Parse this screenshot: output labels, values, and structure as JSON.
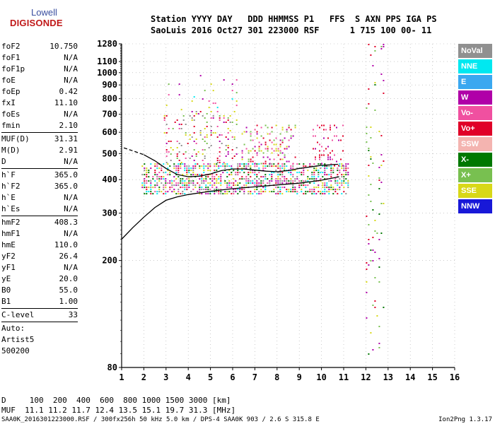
{
  "logo": {
    "line1": "Lowell",
    "line2": "DIGISONDE"
  },
  "header": {
    "row1": "Station YYYY DAY   DDD HHMMSS P1   FFS  S AXN PPS IGA PS",
    "row2": "SaoLuis 2016 Oct27 301 223000 RSF      1 715 100 00- 11"
  },
  "params": [
    {
      "label": "foF2",
      "value": "10.750"
    },
    {
      "label": "foF1",
      "value": "N/A"
    },
    {
      "label": "foF1p",
      "value": "N/A"
    },
    {
      "label": "foE",
      "value": "N/A"
    },
    {
      "label": "foEp",
      "value": "0.42"
    },
    {
      "label": "fxI",
      "value": "11.10"
    },
    {
      "label": "foEs",
      "value": "N/A"
    },
    {
      "label": "fmin",
      "value": "2.10"
    },
    {
      "sep": true
    },
    {
      "label": "MUF(D)",
      "value": "31.31"
    },
    {
      "label": "M(D)",
      "value": "2.91"
    },
    {
      "label": "D",
      "value": "N/A"
    },
    {
      "sep": true
    },
    {
      "label": "h`F",
      "value": "365.0"
    },
    {
      "label": "h`F2",
      "value": "365.0"
    },
    {
      "label": "h`E",
      "value": "N/A"
    },
    {
      "label": "h`Es",
      "value": "N/A"
    },
    {
      "sep": true
    },
    {
      "label": "hmF2",
      "value": "408.3"
    },
    {
      "label": "hmF1",
      "value": "N/A"
    },
    {
      "label": "hmE",
      "value": "110.0"
    },
    {
      "label": "yF2",
      "value": "26.4"
    },
    {
      "label": "yF1",
      "value": "N/A"
    },
    {
      "label": "yE",
      "value": "20.0"
    },
    {
      "label": "B0",
      "value": "55.0"
    },
    {
      "label": "B1",
      "value": "1.00"
    },
    {
      "sep": true
    },
    {
      "label": "C-level",
      "value": "33"
    },
    {
      "sep": true
    },
    {
      "text": "Auto:"
    },
    {
      "text": "Artist5"
    },
    {
      "text": "500200"
    }
  ],
  "legend": [
    {
      "label": "NoVal",
      "color": "#909090"
    },
    {
      "label": "NNE",
      "color": "#00e8f0"
    },
    {
      "label": "E",
      "color": "#3aa8f0"
    },
    {
      "label": "W",
      "color": "#b000a8"
    },
    {
      "label": "Vo-",
      "color": "#f050a0"
    },
    {
      "label": "Vo+",
      "color": "#e00028"
    },
    {
      "label": "SSW",
      "color": "#f4b4b0"
    },
    {
      "label": "X-",
      "color": "#007800"
    },
    {
      "label": "X+",
      "color": "#78c050"
    },
    {
      "label": "SSE",
      "color": "#d8d818"
    },
    {
      "label": "NNW",
      "color": "#1818d8"
    }
  ],
  "footer": {
    "d_row": "D     100  200  400  600  800 1000 1500 3000 [km]",
    "muf_row": "MUF  11.1 11.2 11.7 12.4 13.5 15.1 19.7 31.3 [MHz]",
    "info": "SAA0K_2016301223000.RSF / 300fx256h 50 kHz 5.0 km / DPS-4 SAA0K 903 / 2.6 S 315.8 E",
    "version": "Ion2Png 1.3.17"
  },
  "chart_data": {
    "type": "scatter",
    "xlim": [
      1,
      16
    ],
    "x_ticks": [
      1,
      2,
      3,
      4,
      5,
      6,
      7,
      8,
      9,
      10,
      11,
      12,
      13,
      14,
      15,
      16
    ],
    "ylim": [
      80,
      1280
    ],
    "y_ticks": [
      80,
      200,
      300,
      400,
      500,
      600,
      700,
      800,
      900,
      1000,
      1100,
      1280
    ],
    "y_scale": "log",
    "grid": true,
    "series": [
      {
        "name": "NoVal",
        "color": "#909090"
      },
      {
        "name": "NNE",
        "color": "#00e8f0"
      },
      {
        "name": "E",
        "color": "#3aa8f0"
      },
      {
        "name": "W",
        "color": "#b000a8"
      },
      {
        "name": "Vo-",
        "color": "#f050a0"
      },
      {
        "name": "Vo+",
        "color": "#e00028"
      },
      {
        "name": "SSW",
        "color": "#f4b4b0"
      },
      {
        "name": "X-",
        "color": "#007800"
      },
      {
        "name": "X+",
        "color": "#78c050"
      },
      {
        "name": "SSE",
        "color": "#d8d818"
      },
      {
        "name": "NNW",
        "color": "#1818d8"
      }
    ],
    "echo_clusters": [
      {
        "f": [
          1.9,
          11.2
        ],
        "h": [
          355,
          460
        ],
        "density": 0.55,
        "mix": [
          "Vo-",
          "W",
          "Vo+",
          "X-",
          "SSE",
          "NNE",
          "NoVal"
        ]
      },
      {
        "f": [
          2.9,
          6.2
        ],
        "h": [
          460,
          720
        ],
        "density": 0.18,
        "mix": [
          "Vo-",
          "W",
          "SSE",
          "X+",
          "NoVal",
          "Vo+"
        ]
      },
      {
        "f": [
          2.9,
          6.2
        ],
        "h": [
          720,
          980
        ],
        "density": 0.05,
        "mix": [
          "Vo-",
          "W",
          "SSE",
          "X+",
          "NNE"
        ]
      },
      {
        "f": [
          6.4,
          8.8
        ],
        "h": [
          460,
          640
        ],
        "density": 0.22,
        "mix": [
          "Vo-",
          "W",
          "SSE",
          "X+",
          "Vo+"
        ]
      },
      {
        "f": [
          9.6,
          11.0
        ],
        "h": [
          440,
          640
        ],
        "density": 0.15,
        "mix": [
          "Vo-",
          "W",
          "Vo+"
        ]
      },
      {
        "f": [
          12.0,
          12.8
        ],
        "h": [
          90,
          1280
        ],
        "density": 0.05,
        "mix": [
          "X-",
          "X+",
          "Vo+",
          "SSE",
          "W"
        ]
      }
    ],
    "trace_lower": {
      "f": [
        1.0,
        1.5,
        2.0,
        2.5,
        3.0,
        3.5,
        4.0,
        5.0,
        6.0,
        7.0,
        8.0,
        9.0,
        10.0,
        10.8
      ],
      "h": [
        240,
        265,
        290,
        315,
        335,
        345,
        352,
        362,
        370,
        376,
        382,
        388,
        398,
        410
      ]
    },
    "trace_upper": {
      "f": [
        1.1,
        1.5,
        2.0,
        2.5,
        3.0,
        3.5,
        4.0,
        4.5,
        5.0,
        5.5,
        6.0,
        6.5,
        7.0,
        7.5,
        8.0,
        8.5,
        9.0,
        9.5,
        10.0,
        10.5,
        10.75
      ],
      "h": [
        525,
        512,
        495,
        470,
        440,
        418,
        410,
        412,
        420,
        432,
        438,
        438,
        434,
        430,
        428,
        432,
        440,
        446,
        452,
        455,
        456
      ]
    }
  }
}
